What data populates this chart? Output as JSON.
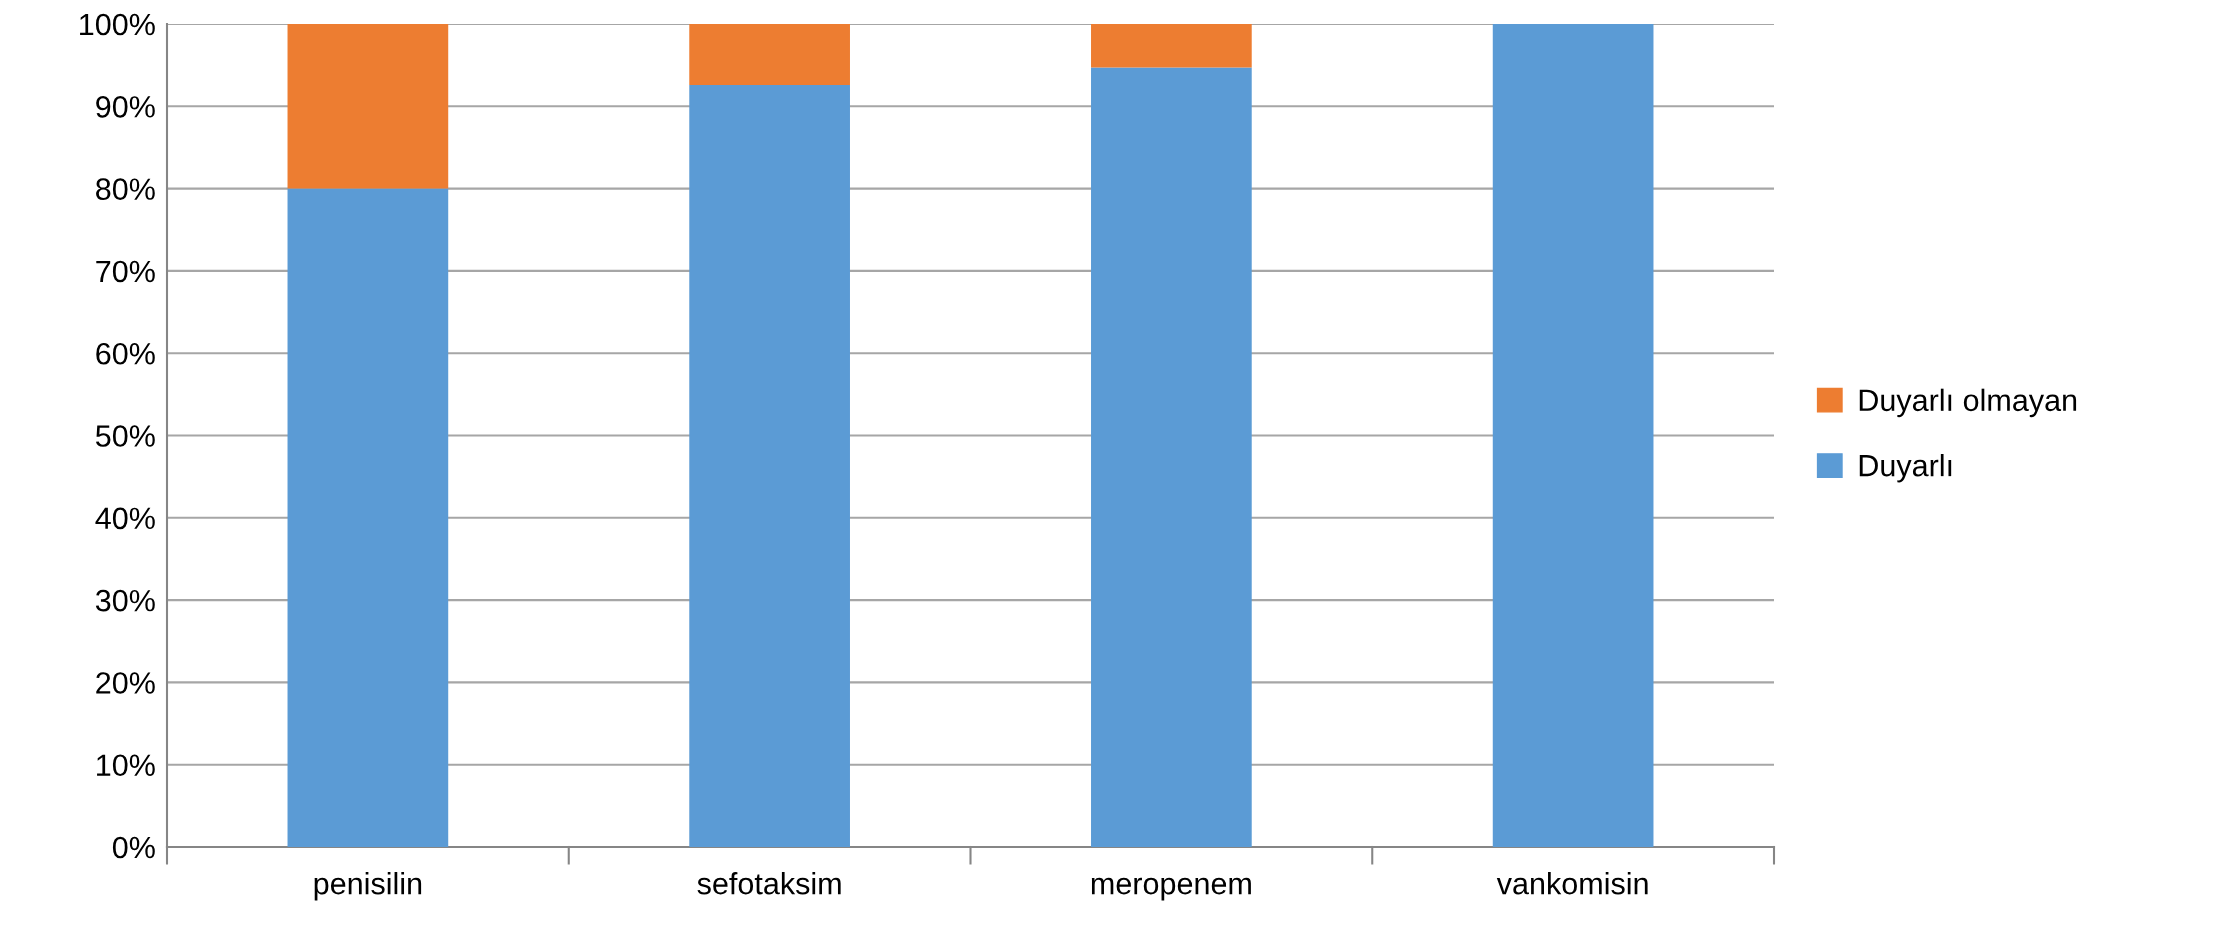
{
  "chart_data": {
    "type": "bar",
    "stacked": true,
    "categories": [
      "penisilin",
      "sefotaksim",
      "meropenem",
      "vankomisin"
    ],
    "series": [
      {
        "name": "Duyarlı",
        "color": "#5b9bd5",
        "values": [
          80,
          92.6,
          94.7,
          100
        ]
      },
      {
        "name": "Duyarlı olmayan",
        "color": "#ed7d31",
        "values": [
          20,
          7.4,
          5.3,
          0
        ]
      }
    ],
    "ylim": [
      0,
      100
    ],
    "yticks": [
      {
        "value": 0,
        "label": "0%"
      },
      {
        "value": 10,
        "label": "10%"
      },
      {
        "value": 20,
        "label": "20%"
      },
      {
        "value": 30,
        "label": "30%"
      },
      {
        "value": 40,
        "label": "40%"
      },
      {
        "value": 50,
        "label": "50%"
      },
      {
        "value": 60,
        "label": "60%"
      },
      {
        "value": 70,
        "label": "70%"
      },
      {
        "value": 80,
        "label": "80%"
      },
      {
        "value": 90,
        "label": "90%"
      },
      {
        "value": 100,
        "label": "100%"
      }
    ],
    "grid": "y",
    "legend": "right"
  }
}
